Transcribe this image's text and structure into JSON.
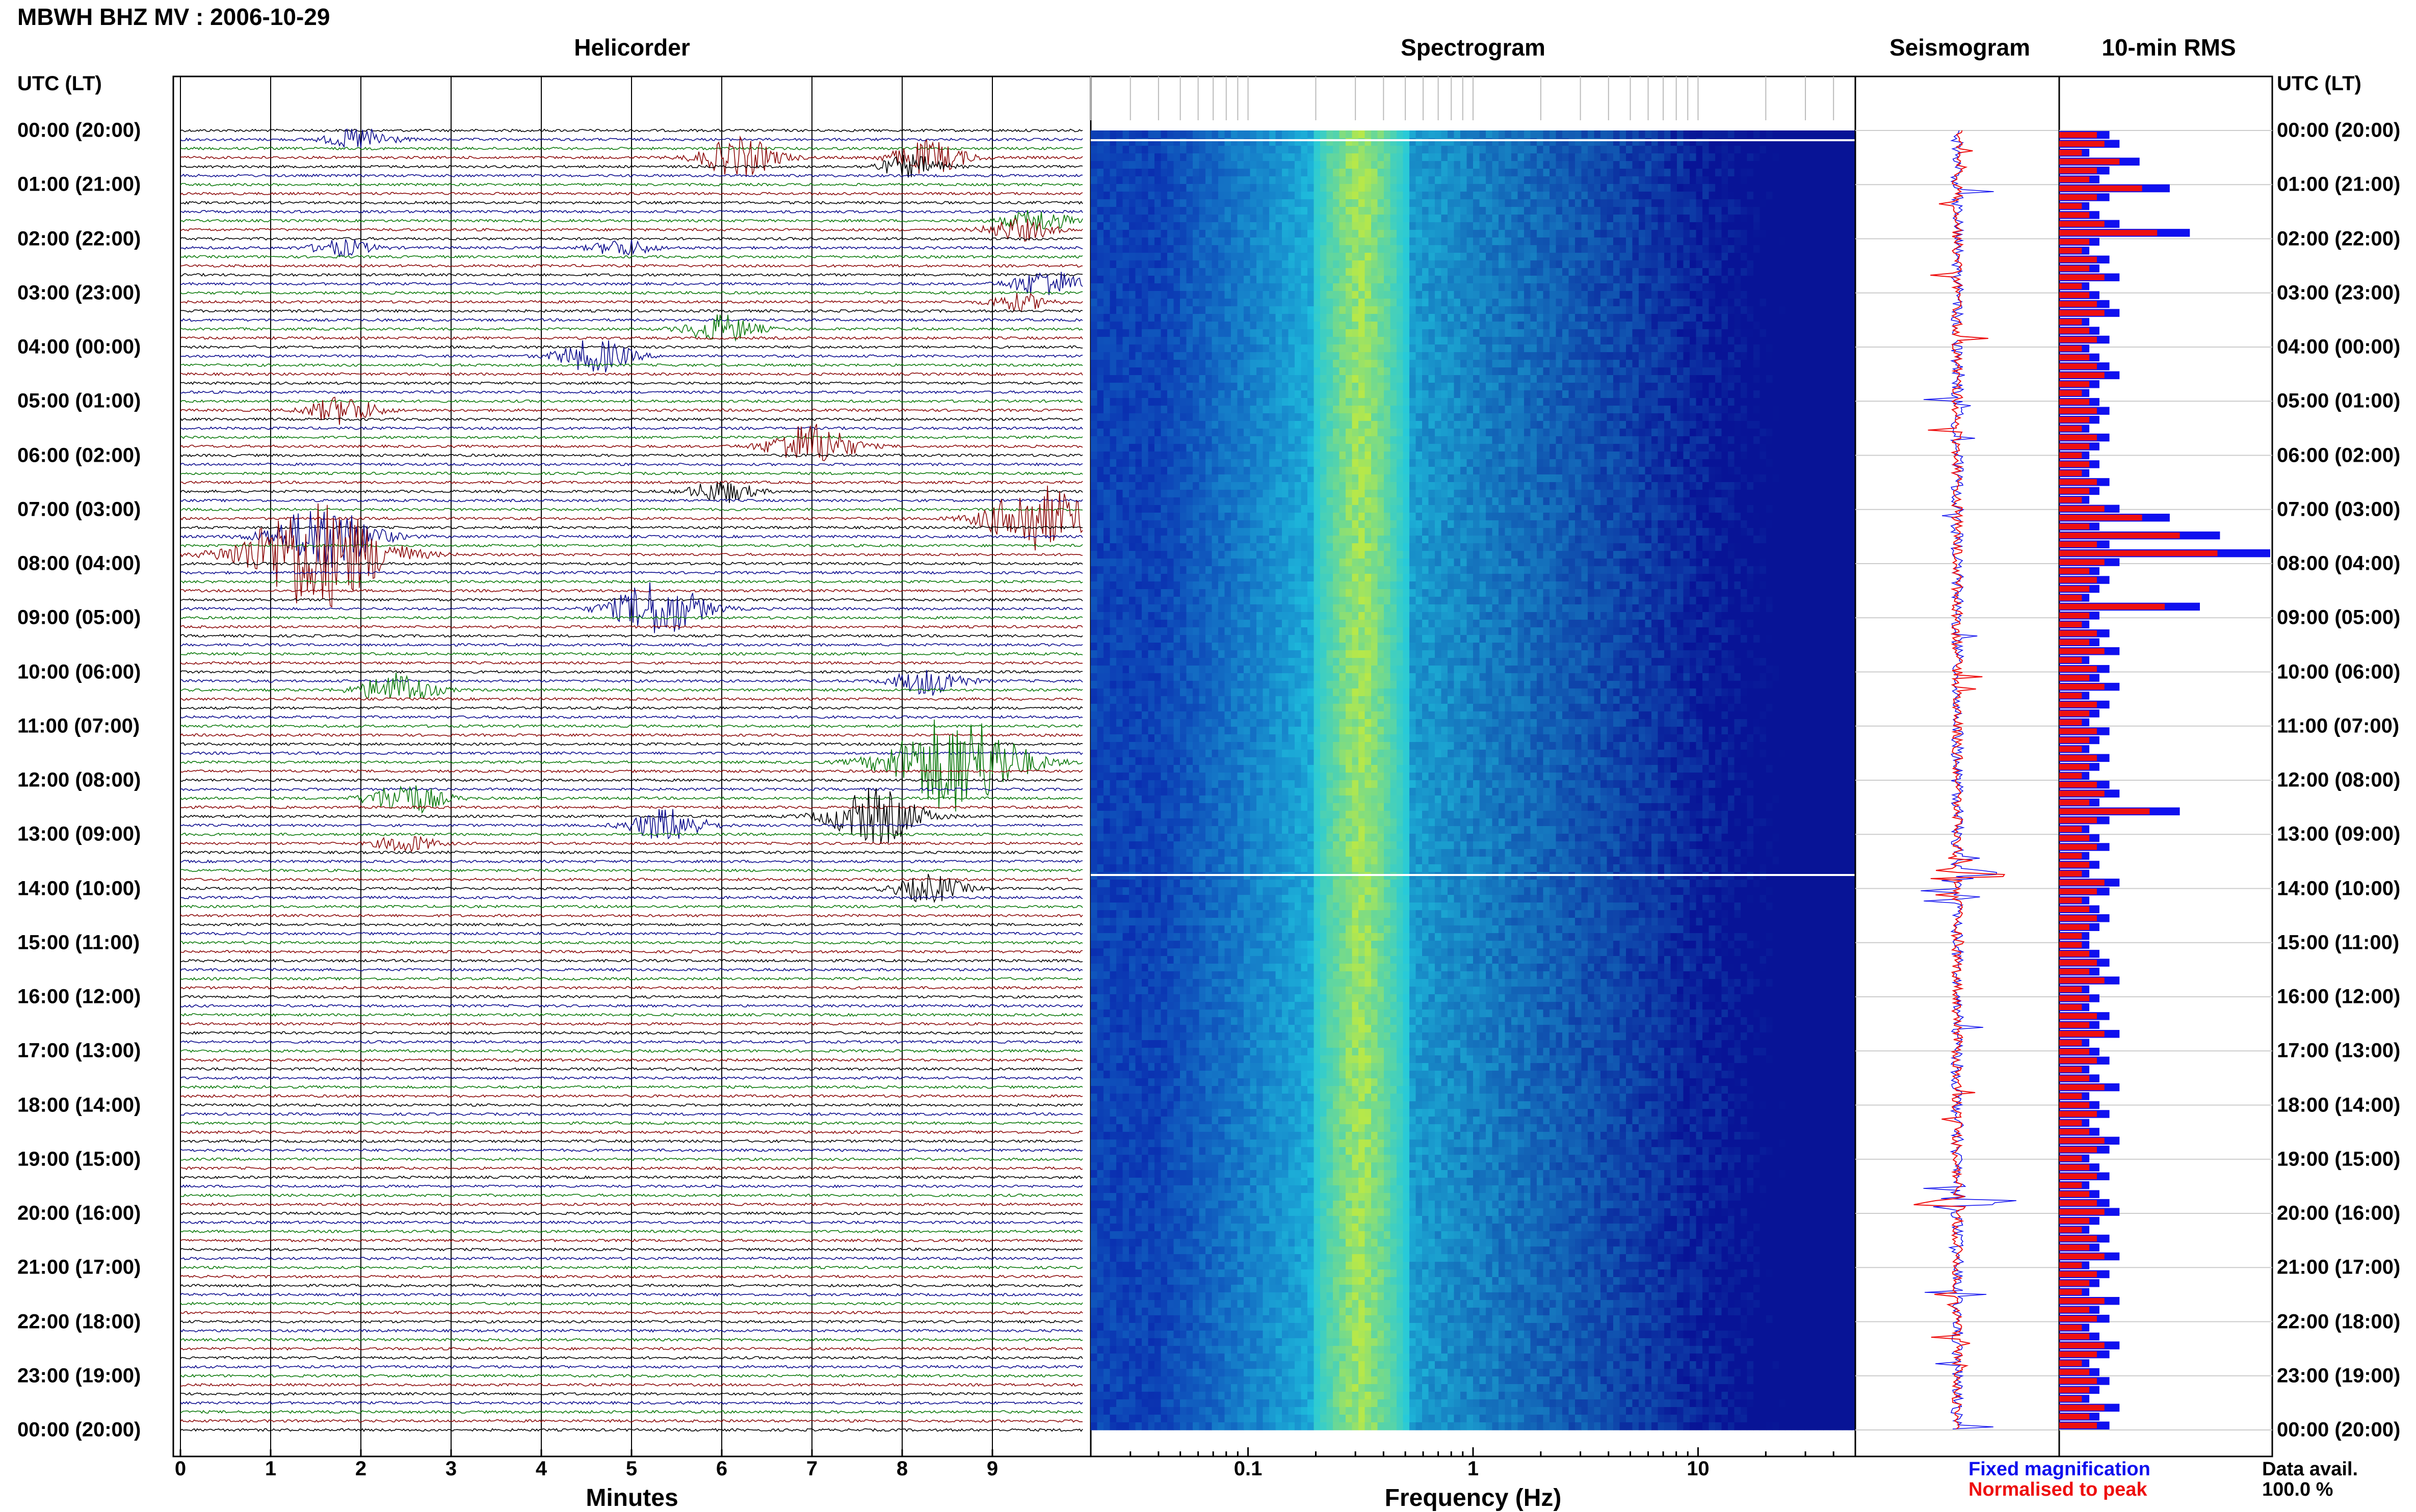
{
  "title": "MBWH BHZ MV : 2006-10-29",
  "panels": {
    "helicorder": "Helicorder",
    "spectrogram": "Spectrogram",
    "seismogram": "Seismogram",
    "rms": "10-min RMS"
  },
  "time_axis_header": "UTC (LT)",
  "time_labels": [
    "00:00 (20:00)",
    "01:00 (21:00)",
    "02:00 (22:00)",
    "03:00 (23:00)",
    "04:00 (00:00)",
    "05:00 (01:00)",
    "06:00 (02:00)",
    "07:00 (03:00)",
    "08:00 (04:00)",
    "09:00 (05:00)",
    "10:00 (06:00)",
    "11:00 (07:00)",
    "12:00 (08:00)",
    "13:00 (09:00)",
    "14:00 (10:00)",
    "15:00 (11:00)",
    "16:00 (12:00)",
    "17:00 (13:00)",
    "18:00 (14:00)",
    "19:00 (15:00)",
    "20:00 (16:00)",
    "21:00 (17:00)",
    "22:00 (18:00)",
    "23:00 (19:00)",
    "00:00 (20:00)"
  ],
  "legend": {
    "fixed": "Fixed magnification",
    "normalised": "Normalised to peak",
    "fixed_color": "#1010ee",
    "normalised_color": "#ee1010"
  },
  "data_availability": {
    "label": "Data avail.",
    "value": "100.0 %"
  },
  "colors": {
    "trace_cycle": [
      "#000000",
      "#0a0a8c",
      "#0c7a0c",
      "#8c0a0a"
    ],
    "spectrogram_low": "#0a2fb0",
    "spectrogram_mid": "#20c8e0",
    "spectrogram_peak": "#b6e84a",
    "rms_fixed": "#1010ee",
    "rms_normalised": "#ee1010"
  },
  "chart_data": [
    {
      "type": "line",
      "name": "helicorder",
      "xlabel": "Minutes",
      "xticks": [
        0,
        1,
        2,
        3,
        4,
        5,
        6,
        7,
        8,
        9
      ],
      "xlim": [
        0,
        10
      ],
      "ylim_hours": [
        0,
        24
      ],
      "lines_per_hour": 6,
      "events": [
        {
          "line": 1,
          "minute": 2.0,
          "amp": 0.4
        },
        {
          "line": 3,
          "minute": 6.2,
          "amp": 0.7
        },
        {
          "line": 3,
          "minute": 8.3,
          "amp": 0.6
        },
        {
          "line": 4,
          "minute": 8.1,
          "amp": 0.4
        },
        {
          "line": 10,
          "minute": 9.5,
          "amp": 0.4
        },
        {
          "line": 11,
          "minute": 9.3,
          "amp": 0.4
        },
        {
          "line": 13,
          "minute": 1.8,
          "amp": 0.3
        },
        {
          "line": 13,
          "minute": 4.9,
          "amp": 0.3
        },
        {
          "line": 17,
          "minute": 9.6,
          "amp": 0.5
        },
        {
          "line": 19,
          "minute": 9.3,
          "amp": 0.3
        },
        {
          "line": 22,
          "minute": 6.0,
          "amp": 0.5
        },
        {
          "line": 25,
          "minute": 4.6,
          "amp": 0.6
        },
        {
          "line": 31,
          "minute": 1.8,
          "amp": 0.5
        },
        {
          "line": 35,
          "minute": 7.0,
          "amp": 0.8
        },
        {
          "line": 40,
          "minute": 6.0,
          "amp": 0.4
        },
        {
          "line": 43,
          "minute": 9.5,
          "amp": 1.2
        },
        {
          "line": 45,
          "minute": 1.6,
          "amp": 1.2
        },
        {
          "line": 47,
          "minute": 1.5,
          "amp": 2.0
        },
        {
          "line": 53,
          "minute": 5.3,
          "amp": 1.0
        },
        {
          "line": 61,
          "minute": 8.3,
          "amp": 0.5
        },
        {
          "line": 62,
          "minute": 2.4,
          "amp": 0.6
        },
        {
          "line": 70,
          "minute": 8.6,
          "amp": 1.8
        },
        {
          "line": 74,
          "minute": 2.5,
          "amp": 0.6
        },
        {
          "line": 76,
          "minute": 7.7,
          "amp": 1.0
        },
        {
          "line": 77,
          "minute": 5.4,
          "amp": 0.6
        },
        {
          "line": 79,
          "minute": 2.5,
          "amp": 0.3
        },
        {
          "line": 84,
          "minute": 8.3,
          "amp": 0.5
        }
      ]
    },
    {
      "type": "heatmap",
      "name": "spectrogram",
      "xlabel": "Frequency (Hz)",
      "x_scale": "log",
      "xlim": [
        0.02,
        50
      ],
      "xticks": [
        0.1,
        1,
        10
      ],
      "xtick_labels": [
        "0.1",
        "1",
        "10"
      ],
      "peak_frequency_band_hz": [
        0.2,
        0.5
      ],
      "ylim_hours": [
        0,
        24
      ]
    },
    {
      "type": "line",
      "name": "seismogram",
      "ylim_hours": [
        0,
        24
      ],
      "spike_hours": [
        13.75,
        19.8
      ]
    },
    {
      "type": "bar",
      "name": "rms",
      "orientation": "horizontal",
      "interval_minutes": 10,
      "series": [
        {
          "name": "Fixed magnification",
          "color": "#1010ee",
          "values": [
            0.5,
            0.6,
            0.3,
            0.8,
            0.5,
            0.4,
            1.1,
            0.5,
            0.3,
            0.4,
            0.6,
            1.3,
            0.4,
            0.3,
            0.5,
            0.4,
            0.6,
            0.3,
            0.4,
            0.5,
            0.6,
            0.3,
            0.4,
            0.5,
            0.3,
            0.4,
            0.5,
            0.6,
            0.4,
            0.3,
            0.4,
            0.5,
            0.4,
            0.3,
            0.5,
            0.4,
            0.3,
            0.4,
            0.3,
            0.5,
            0.4,
            0.3,
            0.6,
            1.1,
            0.4,
            1.6,
            0.5,
            2.1,
            0.6,
            0.4,
            0.5,
            0.4,
            0.3,
            1.4,
            0.4,
            0.3,
            0.5,
            0.4,
            0.6,
            0.3,
            0.5,
            0.4,
            0.6,
            0.3,
            0.5,
            0.4,
            0.3,
            0.5,
            0.4,
            0.3,
            0.5,
            0.4,
            0.3,
            0.5,
            0.6,
            0.4,
            1.2,
            0.5,
            0.3,
            0.4,
            0.5,
            0.3,
            0.4,
            0.3,
            0.6,
            0.5,
            0.3,
            0.4,
            0.5,
            0.4,
            0.3,
            0.3,
            0.4,
            0.5,
            0.4,
            0.6,
            0.3,
            0.4,
            0.3,
            0.5,
            0.4,
            0.6,
            0.3,
            0.4,
            0.5,
            0.3,
            0.4,
            0.6,
            0.3,
            0.4,
            0.5,
            0.3,
            0.4,
            0.6,
            0.5,
            0.3,
            0.4,
            0.5,
            0.3,
            0.4,
            0.5,
            0.6,
            0.4,
            0.3,
            0.5,
            0.4,
            0.6,
            0.3,
            0.5,
            0.4,
            0.3,
            0.6,
            0.4,
            0.5,
            0.3,
            0.4,
            0.6,
            0.5,
            0.3,
            0.4,
            0.5,
            0.4,
            0.3,
            0.6,
            0.4,
            0.5
          ]
        }
      ]
    }
  ]
}
